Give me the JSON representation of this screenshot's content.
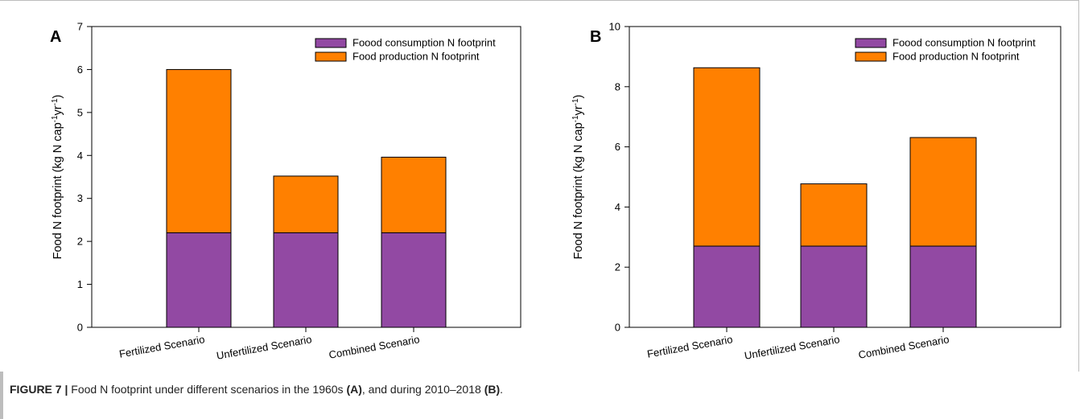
{
  "caption": {
    "label": "FIGURE 7 |",
    "text_before_a": " Food N footprint under different scenarios in the 1960s ",
    "ref_a": "(A)",
    "text_between": ", and during 2010–2018 ",
    "ref_b": "(B)",
    "text_end": "."
  },
  "colors": {
    "consumption": "#9249a3",
    "production": "#ff8000",
    "axis": "#000000"
  },
  "chart_data": [
    {
      "type": "bar",
      "stacked": true,
      "panel_label": "A",
      "categories": [
        "Fertilized Scenario",
        "Unfertilized Scenario",
        "Combined Scenario"
      ],
      "series": [
        {
          "name": "Foood consumption N footprint",
          "values": [
            2.2,
            2.2,
            2.2
          ]
        },
        {
          "name": "Food production N footprint",
          "values": [
            3.8,
            1.32,
            1.76
          ]
        }
      ],
      "ylabel": "Food N footprint (kg N cap-1yr-1)",
      "ylim": [
        0,
        7
      ],
      "yticks": [
        0,
        1,
        2,
        3,
        4,
        5,
        6,
        7
      ],
      "grid": false,
      "legend": "top-right"
    },
    {
      "type": "bar",
      "stacked": true,
      "panel_label": "B",
      "categories": [
        "Fertilized Scenario",
        "Unfertilized Scenario",
        "Combined Scenario"
      ],
      "series": [
        {
          "name": "Foood consumption N footprint",
          "values": [
            2.7,
            2.7,
            2.7
          ]
        },
        {
          "name": "Food production N footprint",
          "values": [
            5.93,
            2.07,
            3.61
          ]
        }
      ],
      "ylabel": "Food N footprint (kg N cap-1yr-1)",
      "ylim": [
        0,
        10
      ],
      "yticks": [
        0,
        2,
        4,
        6,
        8,
        10
      ],
      "grid": false,
      "legend": "top-right"
    }
  ]
}
